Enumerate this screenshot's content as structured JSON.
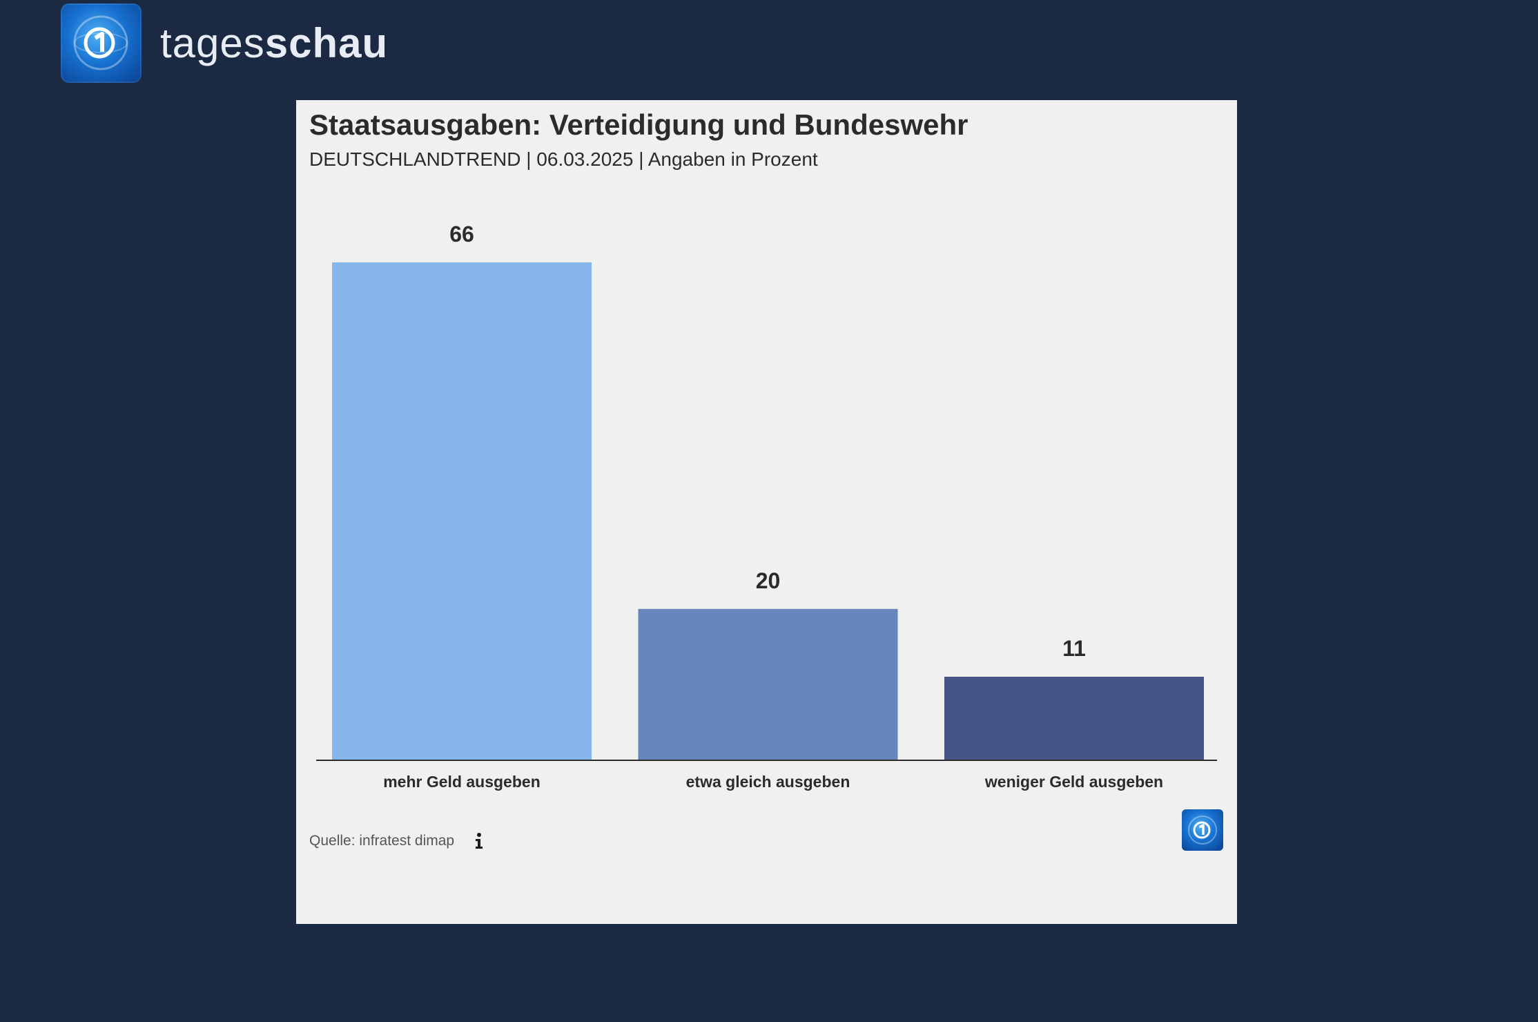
{
  "header": {
    "brand_light": "tages",
    "brand_bold": "schau",
    "logo_icon": "tagesschau-globe-icon"
  },
  "card": {
    "title": "Staatsausgaben: Verteidigung und Bundeswehr",
    "subtitle": "DEUTSCHLANDTREND | 06.03.2025 | Angaben in Prozent",
    "source": "Quelle: infratest dimap",
    "info_icon": "info-icon",
    "corner_icon": "tagesschau-globe-icon"
  },
  "chart_data": {
    "type": "bar",
    "title": "Staatsausgaben: Verteidigung und Bundeswehr",
    "subtitle": "DEUTSCHLANDTREND | 06.03.2025 | Angaben in Prozent",
    "categories": [
      "mehr Geld ausgeben",
      "etwa gleich ausgeben",
      "weniger Geld ausgeben"
    ],
    "values": [
      66,
      20,
      11
    ],
    "colors": [
      "#86b6ec",
      "#6687bb",
      "#445484"
    ],
    "xlabel": "",
    "ylabel": "",
    "ylim": [
      0,
      66
    ],
    "grid": false,
    "legend": "none"
  }
}
